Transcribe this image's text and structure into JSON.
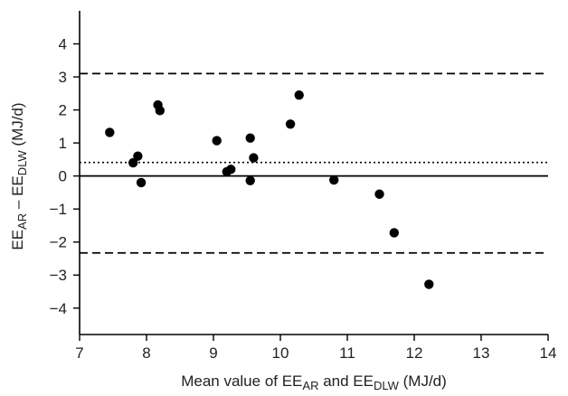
{
  "chart_data": {
    "type": "scatter",
    "title": "",
    "xlabel": {
      "prefix": "Mean value of EE",
      "sub1": "AR",
      "middle": " and  EE",
      "sub2": "DLW",
      "suffix": " (MJ/d)"
    },
    "ylabel": {
      "prefix": "EE",
      "sub1": "AR",
      "middle": " – EE",
      "sub2": "DLW",
      "suffix": " (MJ/d)"
    },
    "xlim": [
      7,
      14
    ],
    "ylim": [
      -4.8,
      5
    ],
    "x_ticks": [
      7,
      8,
      9,
      10,
      11,
      12,
      13,
      14
    ],
    "y_ticks": [
      -4,
      -3,
      -2,
      -1,
      0,
      1,
      2,
      3,
      4
    ],
    "grid": false,
    "series": [
      {
        "points": [
          [
            7.45,
            1.32
          ],
          [
            7.8,
            0.4
          ],
          [
            7.87,
            0.6
          ],
          [
            7.92,
            -0.2
          ],
          [
            8.17,
            2.15
          ],
          [
            8.2,
            1.98
          ],
          [
            9.05,
            1.07
          ],
          [
            9.2,
            0.13
          ],
          [
            9.26,
            0.2
          ],
          [
            9.55,
            1.15
          ],
          [
            9.55,
            -0.14
          ],
          [
            9.6,
            0.55
          ],
          [
            10.15,
            1.57
          ],
          [
            10.28,
            2.45
          ],
          [
            10.8,
            -0.12
          ],
          [
            11.48,
            -0.55
          ],
          [
            11.7,
            -1.72
          ],
          [
            12.22,
            -3.28
          ]
        ]
      }
    ],
    "reference_lines": [
      {
        "y": 0,
        "style": "solid"
      },
      {
        "y": 0.41,
        "style": "dotted"
      },
      {
        "y": 3.1,
        "style": "dashed"
      },
      {
        "y": -2.33,
        "style": "dashed"
      }
    ],
    "colors": {
      "points": "#000000",
      "axes": "#000000"
    }
  }
}
